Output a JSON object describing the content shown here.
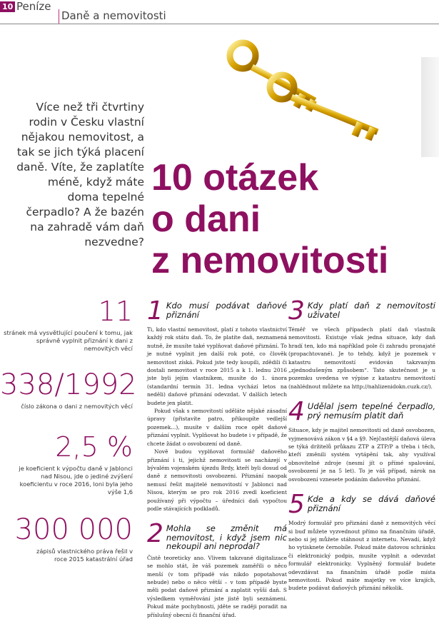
{
  "header": {
    "page": "10",
    "section": "Peníze",
    "subsection": "Daně a nemovitosti"
  },
  "intro": "Více než tři čtvrtiny rodin v Česku vlastní nějakou nemovitost, a tak se jich týká placení daně. Víte, že zaplatíte méně, když máte doma tepelné čerpadlo? A že bazén na zahradě vám daň nezvedne?",
  "title": {
    "line1": "10 otázek",
    "line2": "o dani",
    "line3": "z nemovitosti"
  },
  "colors": {
    "accent": "#8e1060"
  },
  "stats": [
    {
      "value": "11",
      "text": "stránek má vysvětlující poučení k tomu, jak správně vyplnit přiznání k dani z nemovitých věcí"
    },
    {
      "value": "338/1992",
      "text": "číslo zákona o dani z nemovitých věcí"
    },
    {
      "value": "2,5 %",
      "text": "je koeficient k výpočtu daně v Jablonci nad Nisou, jde o jediné zvýšení koeficientu v roce 2016, loni byla jeho výše 1,6"
    },
    {
      "value": "300 000",
      "text": "zápisů vlastnického práva řešil v roce 2015 katastrální úřad"
    }
  ],
  "questions": [
    {
      "n": "1",
      "title": "Kdo musí podávat daňové přiznání",
      "paras": [
        "Ti, kdo vlastní nemovitost, platí z tohoto vlastnictví každý rok státu daň. To, že platíte daň, neznamená nutně, že musíte také vyplňovat daňové přiznání. To je nutné vyplnit jen další rok poté, co člověk nemovitost získá. Pokud jste tedy koupili, zdědili či dostali nemovitost v roce 2015 a k 1. lednu 2016 jste byli jejím vlastníkem, musíte do 1. února (standardní termín 31. ledna vychází letos na neděli) daňové přiznání odevzdat. V dalších letech budete jen platit.",
        "Pokud však s nemovitostí uděláte nějaké zásadní úpravy (přistavíte patro, přikoupíte vedlejší pozemek...), musíte v dalším roce opět daňové přiznání vyplnit. Vyplňovat ho budete i v případě, že chcete žádat o osvobození od daně.",
        "Nově budou vyplňovat formulář daňového přiznání i ti, jejichž nemovitosti se nacházejí v bývalém vojenském újezdu Brdy, kteří byli dosud od daně z nemovitosti osvobozeni. Přiznání naopak nemusí řešit majitelé nemovitostí v Jablonci nad Nisou, kterým se pro rok 2016 zvedl koeficient používaný při výpočtu – úředníci daň vypočtou podle stávajících podkladů."
      ]
    },
    {
      "n": "2",
      "title": "Mohla se změnit má nemovitost, i když jsem nic nekoupil ani neprodal?",
      "paras": [
        "Čistě teoreticky ano. Vlivem takzvané digitalizace se mohlo stát, že váš pozemek zaměřili o něco menší (v tom případě vás nikdo popotahovat nebude) nebo o něco větší – v tom případě byste měli podat daňové přiznání a zaplatit vyšší daň. S výsledkem vyměřování jste jistě byli seznámeni. Pokud máte pochybnosti, jděte se raději poradit na příslušný obecní či finanční úřad."
      ]
    },
    {
      "n": "3",
      "title": "Kdy platí daň z nemovitosti uživatel",
      "paras": [
        "Téměř ve všech případech platí daň vlastník nemovitosti. Existuje však jedna situace, kdy daň hradí ten, kdo má například pole či zahradu pronajaté (propachtované). Je to tehdy, když je pozemek v katastru nemovitostí evidován takzvaným „zjednodušeným způsobem“. Tato skutečnost je u pozemku uvedena ve výpise z katastru nemovitostí (nahlédnout můžete na http://nahlizenidokn.cuzk.cz/)."
      ]
    },
    {
      "n": "4",
      "title": "Udělal jsem tepelné čerpadlo, prý nemusím platit daň",
      "paras": [
        "Situace, kdy je majitel nemovitosti od daně osvobozen, vyjmenovává zákon v §4 a §9. Nejčastější daňová úleva se týká držitelů průkazu ZTP a ZTP/P a třeba i těch, kteří změnili systém vytápění tak, aby využíval obnovitelné zdroje (nesmí jít o přímé spalování, osvobození je na 5 let). To je váš případ, nárok na osvobození vznesete podáním daňového přiznání."
      ]
    },
    {
      "n": "5",
      "title": "Kde a kdy se dává daňové přiznání",
      "paras": [
        "Modrý formulář pro přiznání daně z nemovitých věcí si buď můžete vyzvednout přímo na finančním úřadě, nebo si jej můžete stáhnout z internetu. Nevadí, když ho vytisknete černobíle. Pokud máte datovou schránku či elektronický podpis, musíte vyplnit a odevzdat formulář elektronicky. Vyplněný formulář budete odevzdávat na finančním úřadě podle místa nemovitosti. Pokud máte majetky ve více krajích, budete podávat daňových přiznání několik."
      ]
    }
  ]
}
